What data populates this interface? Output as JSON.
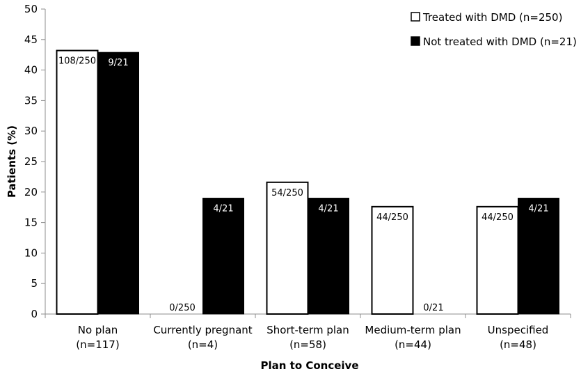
{
  "chart_data": {
    "type": "bar",
    "title": "",
    "xlabel": "Plan to Conceive",
    "ylabel": "Patients (%)",
    "ylim": [
      0,
      50
    ],
    "yticks": [
      0,
      5,
      10,
      15,
      20,
      25,
      30,
      35,
      40,
      45,
      50
    ],
    "categories": [
      {
        "name": "No plan",
        "n": "(n=117)"
      },
      {
        "name": "Currently pregnant",
        "n": "(n=4)"
      },
      {
        "name": "Short-term plan",
        "n": "(n=58)"
      },
      {
        "name": "Medium-term plan",
        "n": "(n=44)"
      },
      {
        "name": "Unspecified",
        "n": "(n=48)"
      }
    ],
    "series": [
      {
        "name": "Treated with DMD (n=250)",
        "fill": "#ffffff",
        "stroke": "#000000",
        "values": [
          43.2,
          0,
          21.6,
          17.6,
          17.6
        ],
        "labels": [
          "108/250",
          "0/250",
          "54/250",
          "44/250",
          "44/250"
        ]
      },
      {
        "name": "Not treated with DMD (n=21)",
        "fill": "#000000",
        "stroke": "#000000",
        "values": [
          42.9,
          19.0,
          19.0,
          0,
          19.0
        ],
        "labels": [
          "9/21",
          "4/21",
          "4/21",
          "0/21",
          "4/21"
        ]
      }
    ],
    "legend_position": "top-right",
    "grid": false
  }
}
